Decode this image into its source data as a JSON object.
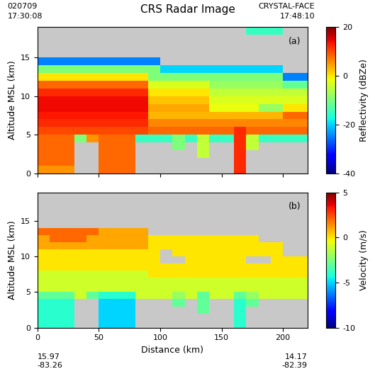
{
  "title": "CRS Radar Image",
  "header": {
    "date": "020709",
    "start_time": "17:30:08",
    "campaign": "CRYSTAL-FACE",
    "end_time": "17:48:10"
  },
  "footer": {
    "start": [
      "15.97",
      "-83.26"
    ],
    "end": [
      "14.17",
      "-82.39"
    ]
  },
  "chart_data": [
    {
      "type": "heatmap",
      "panel_label": "(a)",
      "y_label": "Altitude MSL (km)",
      "x": [
        0,
        10,
        20,
        30,
        40,
        50,
        60,
        70,
        80,
        90,
        100,
        110,
        120,
        130,
        140,
        150,
        160,
        170,
        180,
        190,
        200,
        210,
        220
      ],
      "y": [
        0,
        1,
        2,
        3,
        4,
        5,
        6,
        7,
        8,
        9,
        10,
        11,
        12,
        13,
        14,
        15,
        16,
        17,
        18,
        19
      ],
      "xlim": [
        0,
        220
      ],
      "ylim": [
        0,
        19
      ],
      "xticks": [
        0,
        50,
        100,
        150,
        200
      ],
      "yticks": [
        0,
        5,
        10,
        15
      ],
      "tick_labels": "y",
      "colorbar": {
        "label": "Reflectivity (dBZe)",
        "range": [
          -40,
          20
        ],
        "ticks": [
          -40,
          -20,
          0,
          20
        ]
      },
      "cells": [
        [
          5,
          5,
          5,
          null,
          null,
          8,
          8,
          8,
          null,
          null,
          null,
          null,
          null,
          null,
          null,
          null,
          12,
          null,
          null,
          null,
          null,
          null
        ],
        [
          8,
          8,
          8,
          null,
          null,
          8,
          8,
          8,
          null,
          null,
          null,
          null,
          null,
          null,
          null,
          null,
          12,
          null,
          null,
          null,
          null,
          null
        ],
        [
          8,
          8,
          8,
          null,
          null,
          8,
          8,
          8,
          null,
          null,
          null,
          null,
          null,
          -5,
          null,
          null,
          12,
          null,
          null,
          null,
          null,
          null
        ],
        [
          8,
          8,
          8,
          null,
          null,
          8,
          8,
          8,
          null,
          null,
          null,
          -10,
          null,
          -5,
          null,
          null,
          12,
          -5,
          null,
          null,
          null,
          null
        ],
        [
          8,
          8,
          8,
          -10,
          5,
          8,
          8,
          8,
          -15,
          -15,
          -15,
          -10,
          -15,
          -5,
          -15,
          -15,
          12,
          -5,
          -15,
          -15,
          -15,
          -15
        ],
        [
          10,
          10,
          10,
          10,
          10,
          10,
          10,
          10,
          10,
          8,
          8,
          8,
          8,
          8,
          8,
          8,
          12,
          8,
          8,
          8,
          8,
          8
        ],
        [
          12,
          12,
          12,
          12,
          12,
          12,
          12,
          12,
          12,
          6,
          6,
          6,
          6,
          6,
          6,
          6,
          6,
          6,
          6,
          6,
          6,
          6
        ],
        [
          13,
          13,
          13,
          13,
          13,
          13,
          13,
          13,
          13,
          3,
          3,
          3,
          3,
          3,
          3,
          3,
          3,
          3,
          3,
          3,
          8,
          8
        ],
        [
          14,
          14,
          14,
          14,
          14,
          14,
          14,
          14,
          14,
          4,
          4,
          4,
          4,
          4,
          -2,
          -2,
          -2,
          -2,
          -8,
          -8,
          0,
          0
        ],
        [
          14,
          14,
          14,
          14,
          14,
          14,
          14,
          14,
          14,
          2,
          2,
          2,
          2,
          2,
          -3,
          -3,
          -3,
          -3,
          -3,
          -3,
          -3,
          -3
        ],
        [
          12,
          12,
          12,
          12,
          12,
          12,
          12,
          12,
          12,
          0,
          0,
          0,
          0,
          0,
          -5,
          -5,
          -5,
          -5,
          -5,
          -5,
          -5,
          -5
        ],
        [
          8,
          8,
          8,
          8,
          8,
          8,
          8,
          8,
          8,
          -3,
          -3,
          -3,
          -3,
          -3,
          -8,
          -8,
          -8,
          -8,
          -8,
          -8,
          -12,
          -12
        ],
        [
          0,
          0,
          0,
          0,
          0,
          0,
          0,
          0,
          0,
          -10,
          -10,
          -10,
          -10,
          -10,
          -10,
          -10,
          -10,
          -10,
          -10,
          -10,
          -25,
          -25
        ],
        [
          -10,
          -10,
          -10,
          -10,
          -10,
          -10,
          -10,
          -10,
          -10,
          -10,
          -20,
          -20,
          -20,
          -20,
          -20,
          -20,
          -20,
          -20,
          -20,
          -20,
          null,
          null
        ],
        [
          -25,
          -25,
          -25,
          -25,
          -25,
          -25,
          -25,
          -25,
          -25,
          -25,
          null,
          null,
          null,
          null,
          null,
          null,
          null,
          null,
          null,
          null,
          null,
          null
        ],
        [
          null,
          null,
          null,
          null,
          null,
          null,
          null,
          null,
          null,
          null,
          null,
          null,
          null,
          null,
          null,
          null,
          null,
          null,
          null,
          null,
          null,
          null
        ],
        [
          null,
          null,
          null,
          null,
          null,
          null,
          null,
          null,
          null,
          null,
          null,
          null,
          null,
          null,
          null,
          null,
          null,
          null,
          null,
          null,
          null,
          null
        ],
        [
          null,
          null,
          null,
          null,
          null,
          null,
          null,
          null,
          null,
          null,
          null,
          null,
          null,
          null,
          null,
          null,
          null,
          null,
          null,
          null,
          null,
          null
        ],
        [
          null,
          null,
          null,
          null,
          null,
          null,
          null,
          null,
          null,
          null,
          null,
          null,
          null,
          null,
          null,
          null,
          null,
          -15,
          -15,
          -15,
          null,
          null
        ]
      ]
    },
    {
      "type": "heatmap",
      "panel_label": "(b)",
      "y_label": "Altitude MSL (km)",
      "x_label": "Distance (km)",
      "x": [
        0,
        10,
        20,
        30,
        40,
        50,
        60,
        70,
        80,
        90,
        100,
        110,
        120,
        130,
        140,
        150,
        160,
        170,
        180,
        190,
        200,
        210,
        220
      ],
      "y": [
        0,
        1,
        2,
        3,
        4,
        5,
        6,
        7,
        8,
        9,
        10,
        11,
        12,
        13,
        14,
        15,
        16,
        17,
        18,
        19
      ],
      "xlim": [
        0,
        220
      ],
      "ylim": [
        0,
        19
      ],
      "xticks": [
        0,
        50,
        100,
        150,
        200
      ],
      "yticks": [
        0,
        5,
        10,
        15
      ],
      "colorbar": {
        "label": "Velocity (m/s)",
        "range": [
          -10,
          5
        ],
        "ticks": [
          -10,
          -5,
          0,
          5
        ]
      },
      "cells": [
        [
          -4,
          -4,
          -4,
          null,
          null,
          -5,
          -5,
          -5,
          null,
          null,
          null,
          null,
          null,
          null,
          null,
          null,
          -4,
          null,
          null,
          null,
          null,
          null
        ],
        [
          -4,
          -4,
          -4,
          null,
          null,
          -5,
          -5,
          -5,
          null,
          null,
          null,
          null,
          null,
          null,
          null,
          null,
          -4,
          null,
          null,
          null,
          null,
          null
        ],
        [
          -4,
          -4,
          -4,
          null,
          null,
          -5,
          -5,
          -5,
          null,
          null,
          null,
          null,
          null,
          -3,
          null,
          null,
          -4,
          null,
          null,
          null,
          null,
          null
        ],
        [
          -4,
          -4,
          -4,
          null,
          null,
          -5,
          -5,
          -5,
          null,
          null,
          null,
          -3,
          null,
          -3,
          null,
          null,
          -4,
          -3,
          null,
          null,
          null,
          null
        ],
        [
          -3,
          -3,
          -3,
          -1,
          -3,
          -4,
          -4,
          -4,
          -1,
          -1,
          -1,
          -2,
          -1,
          -3,
          -1,
          -1,
          -3,
          -2,
          -1,
          -1,
          -1,
          -1
        ],
        [
          -1,
          -1,
          -1,
          -1,
          -1,
          -1,
          -1,
          -1,
          -1,
          -1,
          -1,
          -1,
          -1,
          -1,
          -1,
          -1,
          -1,
          -1,
          -1,
          -1,
          -1,
          -1
        ],
        [
          -1,
          -1,
          -1,
          -1,
          -1,
          -1,
          -1,
          -1,
          -1,
          -1,
          -1,
          -1,
          -1,
          -1,
          -1,
          -1,
          -1,
          -1,
          -1,
          -1,
          -1,
          -1
        ],
        [
          -1,
          -1,
          -1,
          -1,
          -1,
          -1,
          -1,
          -1,
          -1,
          0,
          0,
          0,
          0,
          0,
          0,
          0,
          0,
          0,
          0,
          0,
          0,
          0
        ],
        [
          0,
          0,
          0,
          0,
          0,
          0,
          0,
          0,
          0,
          0,
          0,
          0,
          0,
          0,
          0,
          0,
          0,
          0,
          0,
          0,
          0,
          0
        ],
        [
          0,
          0,
          0,
          0,
          0,
          0,
          0,
          0,
          0,
          0,
          null,
          null,
          0,
          0,
          0,
          0,
          0,
          null,
          null,
          0,
          0,
          0
        ],
        [
          0,
          0,
          0,
          0,
          0,
          0,
          0,
          0,
          0,
          0,
          null,
          0,
          0,
          0,
          0,
          0,
          0,
          0,
          0,
          0,
          null,
          null
        ],
        [
          1,
          1,
          1,
          1,
          1,
          1,
          1,
          1,
          1,
          0,
          0,
          0,
          0,
          0,
          0,
          0,
          0,
          0,
          0,
          0,
          null,
          null
        ],
        [
          1,
          2,
          2,
          2,
          1,
          1,
          1,
          1,
          1,
          0,
          0,
          0,
          0,
          0,
          0,
          0,
          0,
          0,
          null,
          null,
          null,
          null
        ],
        [
          2,
          2,
          2,
          2,
          2,
          1,
          1,
          1,
          1,
          null,
          null,
          null,
          null,
          null,
          null,
          null,
          null,
          null,
          null,
          null,
          null,
          null
        ],
        [
          null,
          null,
          null,
          null,
          null,
          null,
          null,
          null,
          null,
          null,
          null,
          null,
          null,
          null,
          null,
          null,
          null,
          null,
          null,
          null,
          null,
          null
        ],
        [
          null,
          null,
          null,
          null,
          null,
          null,
          null,
          null,
          null,
          null,
          null,
          null,
          null,
          null,
          null,
          null,
          null,
          null,
          null,
          null,
          null,
          null
        ],
        [
          null,
          null,
          null,
          null,
          null,
          null,
          null,
          null,
          null,
          null,
          null,
          null,
          null,
          null,
          null,
          null,
          null,
          null,
          null,
          null,
          null,
          null
        ],
        [
          null,
          null,
          null,
          null,
          null,
          null,
          null,
          null,
          null,
          null,
          null,
          null,
          null,
          null,
          null,
          null,
          null,
          null,
          null,
          null,
          null,
          null
        ],
        [
          null,
          null,
          null,
          null,
          null,
          null,
          null,
          null,
          null,
          null,
          null,
          null,
          null,
          null,
          null,
          null,
          null,
          null,
          null,
          null,
          null,
          null
        ]
      ]
    }
  ]
}
